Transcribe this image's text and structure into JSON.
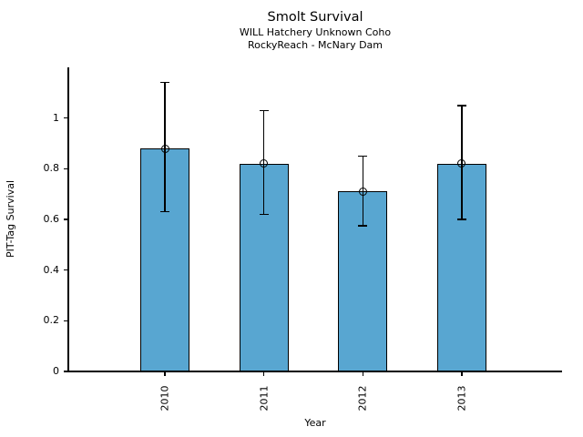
{
  "chart_data": {
    "type": "bar",
    "title": "Smolt Survival",
    "subtitle_lines": [
      "WILL Hatchery Unknown Coho",
      "RockyReach - McNary Dam"
    ],
    "xlabel": "Year",
    "ylabel": "PIT-Tag Survival",
    "categories": [
      "2010",
      "2011",
      "2012",
      "2013"
    ],
    "values": [
      0.88,
      0.82,
      0.71,
      0.82
    ],
    "error_upper": [
      1.14,
      1.03,
      0.85,
      1.05
    ],
    "error_lower": [
      0.63,
      0.62,
      0.575,
      0.6
    ],
    "yticks": [
      0,
      0.2,
      0.4,
      0.6,
      0.8,
      1
    ],
    "ytick_labels": [
      "0",
      "0.2",
      "0.4",
      "0.6",
      "0.8",
      "1"
    ],
    "ylim": [
      0,
      1.2
    ],
    "xtick_rotation": 90,
    "grid": false,
    "legend": "none",
    "marker": "open-circle",
    "bar_color": "#58A6D1",
    "bar_edge_color": "#000000",
    "error_color": "#000000",
    "text_color": "#000000"
  }
}
